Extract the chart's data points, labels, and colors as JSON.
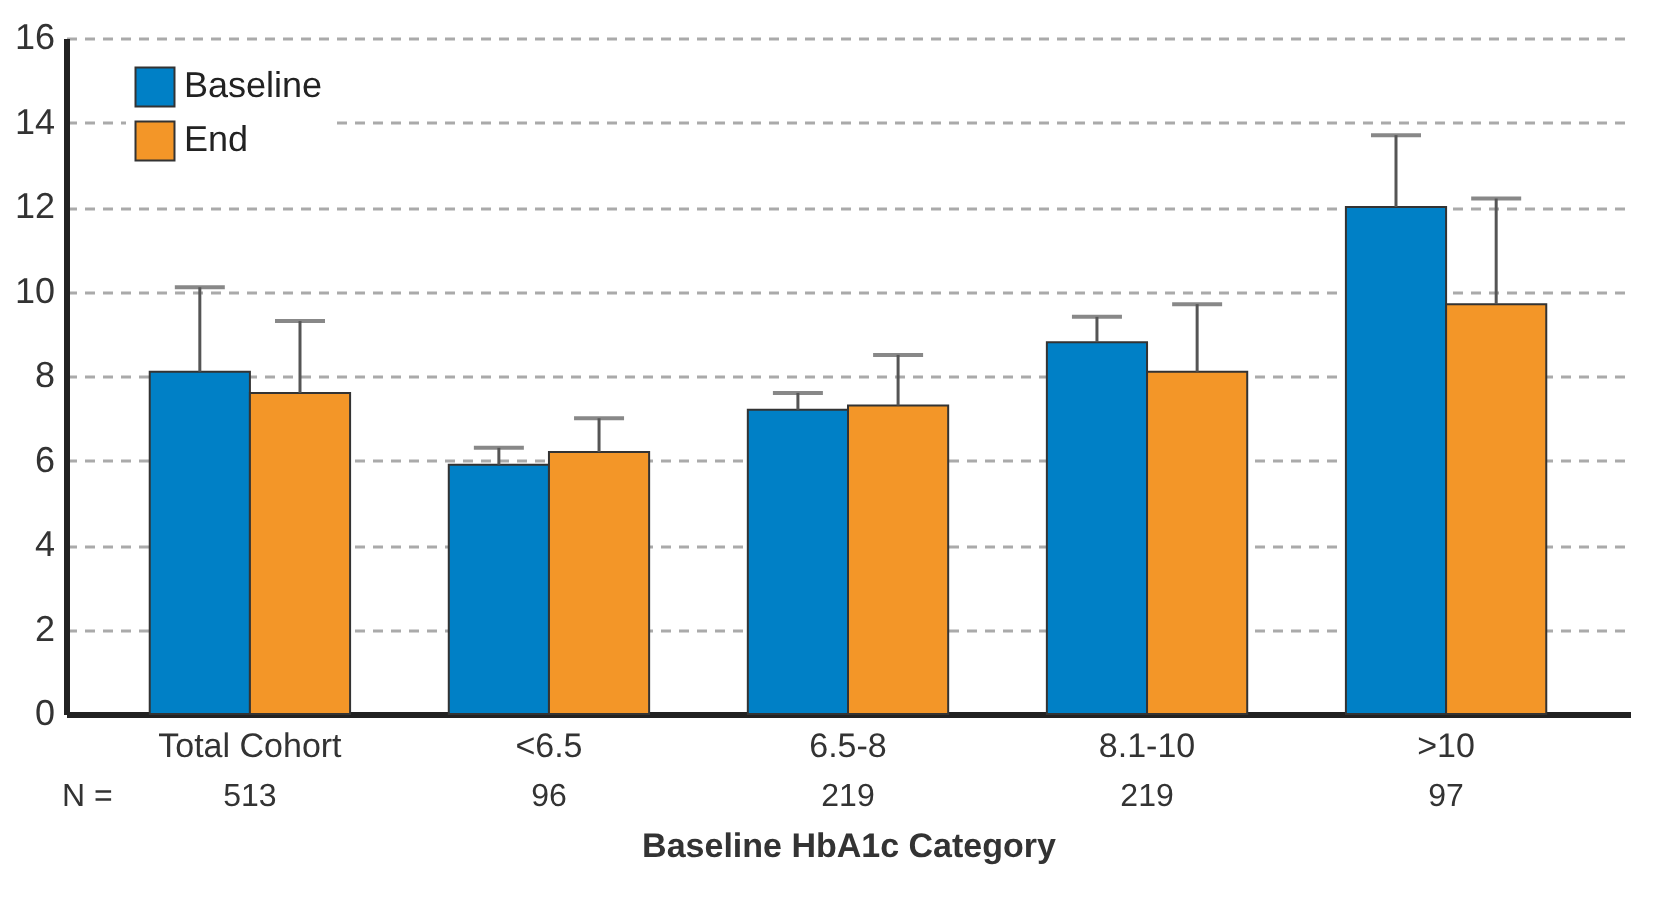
{
  "chart_data": {
    "type": "bar",
    "categories": [
      "Total Cohort",
      "<6.5",
      "6.5-8",
      "8.1-10",
      ">10"
    ],
    "xlabel": "Baseline HbA1c Category",
    "series": [
      {
        "name": "Baseline",
        "color": "#0080c6",
        "values": [
          8.1,
          5.9,
          7.2,
          8.8,
          12.0
        ],
        "errors": [
          [
            8.1,
            10.1
          ],
          [
            5.9,
            6.3
          ],
          [
            7.2,
            7.6
          ],
          [
            8.8,
            9.4
          ],
          [
            12.0,
            13.7
          ]
        ]
      },
      {
        "name": "End",
        "color": "#f39628",
        "values": [
          7.6,
          6.2,
          7.3,
          8.1,
          9.7
        ],
        "errors": [
          [
            7.6,
            9.3
          ],
          [
            6.2,
            7.0
          ],
          [
            7.3,
            8.5
          ],
          [
            8.1,
            9.7
          ],
          [
            9.7,
            12.2
          ]
        ]
      }
    ],
    "annotations": [
      "N =",
      "513",
      "96",
      "219",
      "219",
      "97"
    ],
    "ylim": [
      0,
      16
    ],
    "yticks": [
      0,
      2,
      4,
      6,
      8,
      10,
      12,
      14,
      16
    ],
    "grid": "y",
    "legend": "top left"
  }
}
